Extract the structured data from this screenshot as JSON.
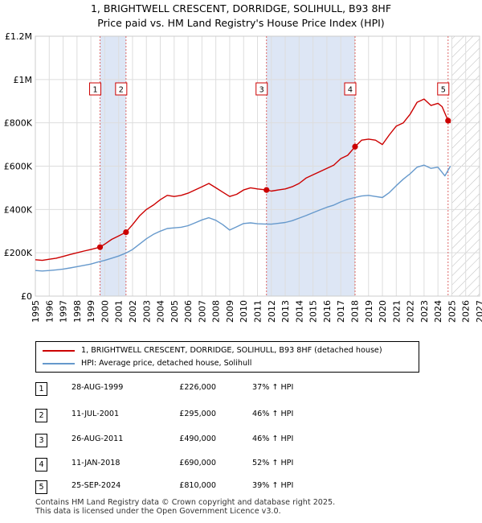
{
  "chart_data": {
    "type": "line",
    "title": "1, BRIGHTWELL CRESCENT, DORRIDGE, SOLIHULL, B93 8HF",
    "subtitle": "Price paid vs. HM Land Registry's House Price Index (HPI)",
    "xlim": [
      1995,
      2027
    ],
    "ylim": [
      0,
      1200000
    ],
    "x_ticks": [
      1995,
      1996,
      1997,
      1998,
      1999,
      2000,
      2001,
      2002,
      2003,
      2004,
      2005,
      2006,
      2007,
      2008,
      2009,
      2010,
      2011,
      2012,
      2013,
      2014,
      2015,
      2016,
      2017,
      2018,
      2019,
      2020,
      2021,
      2022,
      2023,
      2024,
      2025,
      2026,
      2027
    ],
    "y_ticks": [
      {
        "value": 0,
        "label": "£0"
      },
      {
        "value": 200000,
        "label": "£200K"
      },
      {
        "value": 400000,
        "label": "£400K"
      },
      {
        "value": 600000,
        "label": "£600K"
      },
      {
        "value": 800000,
        "label": "£800K"
      },
      {
        "value": 1000000,
        "label": "£1M"
      },
      {
        "value": 1200000,
        "label": "£1.2M"
      }
    ],
    "shaded_periods": [
      [
        1999.66,
        2001.53
      ],
      [
        2011.65,
        2018.03
      ]
    ],
    "projection_start": 2025.0,
    "series": [
      {
        "name": "1, BRIGHTWELL CRESCENT, DORRIDGE, SOLIHULL, B93 8HF (detached house)",
        "color": "#cc0000",
        "x": [
          1995.0,
          1995.5,
          1996.0,
          1996.5,
          1997.0,
          1997.5,
          1998.0,
          1998.5,
          1999.0,
          1999.66,
          2000.0,
          2000.5,
          2001.0,
          2001.53,
          2002.0,
          2002.5,
          2003.0,
          2003.5,
          2004.0,
          2004.5,
          2005.0,
          2005.5,
          2006.0,
          2006.5,
          2007.0,
          2007.5,
          2008.0,
          2008.5,
          2009.0,
          2009.5,
          2010.0,
          2010.5,
          2011.0,
          2011.65,
          2012.0,
          2012.5,
          2013.0,
          2013.5,
          2014.0,
          2014.5,
          2015.0,
          2015.5,
          2016.0,
          2016.5,
          2017.0,
          2017.5,
          2018.03,
          2018.5,
          2019.0,
          2019.5,
          2020.0,
          2020.5,
          2021.0,
          2021.5,
          2022.0,
          2022.5,
          2023.0,
          2023.5,
          2024.0,
          2024.3,
          2024.73,
          2024.9
        ],
        "values": [
          168000,
          165000,
          170000,
          175000,
          183000,
          192000,
          200000,
          208000,
          215000,
          226000,
          240000,
          262000,
          278000,
          295000,
          330000,
          370000,
          400000,
          420000,
          445000,
          465000,
          460000,
          465000,
          475000,
          490000,
          505000,
          520000,
          500000,
          480000,
          460000,
          470000,
          490000,
          500000,
          495000,
          490000,
          485000,
          490000,
          495000,
          505000,
          520000,
          545000,
          560000,
          575000,
          590000,
          605000,
          635000,
          650000,
          690000,
          720000,
          725000,
          720000,
          700000,
          745000,
          785000,
          800000,
          840000,
          895000,
          910000,
          880000,
          890000,
          875000,
          810000,
          800000
        ]
      },
      {
        "name": "HPI: Average price, detached house, Solihull",
        "color": "#6699cc",
        "x": [
          1995.0,
          1995.5,
          1996.0,
          1996.5,
          1997.0,
          1997.5,
          1998.0,
          1998.5,
          1999.0,
          1999.5,
          2000.0,
          2000.5,
          2001.0,
          2001.5,
          2002.0,
          2002.5,
          2003.0,
          2003.5,
          2004.0,
          2004.5,
          2005.0,
          2005.5,
          2006.0,
          2006.5,
          2007.0,
          2007.5,
          2008.0,
          2008.5,
          2009.0,
          2009.5,
          2010.0,
          2010.5,
          2011.0,
          2011.5,
          2012.0,
          2012.5,
          2013.0,
          2013.5,
          2014.0,
          2014.5,
          2015.0,
          2015.5,
          2016.0,
          2016.5,
          2017.0,
          2017.5,
          2018.0,
          2018.5,
          2019.0,
          2019.5,
          2020.0,
          2020.5,
          2021.0,
          2021.5,
          2022.0,
          2022.5,
          2023.0,
          2023.5,
          2024.0,
          2024.5,
          2024.9
        ],
        "values": [
          118000,
          116000,
          118000,
          121000,
          125000,
          130000,
          136000,
          142000,
          148000,
          157000,
          165000,
          175000,
          185000,
          198000,
          215000,
          240000,
          265000,
          285000,
          300000,
          312000,
          315000,
          318000,
          325000,
          338000,
          352000,
          362000,
          350000,
          330000,
          305000,
          320000,
          335000,
          338000,
          334000,
          333000,
          332000,
          336000,
          340000,
          348000,
          360000,
          372000,
          385000,
          398000,
          410000,
          420000,
          435000,
          447000,
          455000,
          462000,
          465000,
          460000,
          455000,
          478000,
          510000,
          540000,
          565000,
          595000,
          605000,
          590000,
          595000,
          555000,
          600000
        ]
      }
    ],
    "sales": [
      {
        "id": "1",
        "x": 1999.66,
        "price": 226000
      },
      {
        "id": "2",
        "x": 2001.53,
        "price": 295000
      },
      {
        "id": "3",
        "x": 2011.65,
        "price": 490000
      },
      {
        "id": "4",
        "x": 2018.03,
        "price": 690000
      },
      {
        "id": "5",
        "x": 2024.73,
        "price": 810000
      }
    ]
  },
  "title_line1": "1, BRIGHTWELL CRESCENT, DORRIDGE, SOLIHULL, B93 8HF",
  "title_line2": "Price paid vs. HM Land Registry's House Price Index (HPI)",
  "legend": {
    "property_label": "1, BRIGHTWELL CRESCENT, DORRIDGE, SOLIHULL, B93 8HF (detached house)",
    "hpi_label": "HPI: Average price, detached house, Solihull",
    "property_color": "#cc0000",
    "hpi_color": "#6699cc"
  },
  "sales_table": [
    {
      "num": "1",
      "date": "28-AUG-1999",
      "price": "£226,000",
      "hpi": "37% ↑ HPI"
    },
    {
      "num": "2",
      "date": "11-JUL-2001",
      "price": "£295,000",
      "hpi": "46% ↑ HPI"
    },
    {
      "num": "3",
      "date": "26-AUG-2011",
      "price": "£490,000",
      "hpi": "46% ↑ HPI"
    },
    {
      "num": "4",
      "date": "11-JAN-2018",
      "price": "£690,000",
      "hpi": "52% ↑ HPI"
    },
    {
      "num": "5",
      "date": "25-SEP-2024",
      "price": "£810,000",
      "hpi": "39% ↑ HPI"
    }
  ],
  "footer": {
    "line1": "Contains HM Land Registry data © Crown copyright and database right 2025.",
    "line2": "This data is licensed under the Open Government Licence v3.0."
  }
}
